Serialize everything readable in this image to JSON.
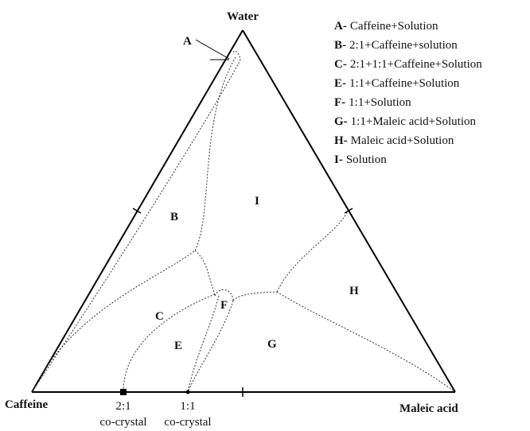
{
  "vertices": {
    "top": "Water",
    "left": "Caffeine",
    "right": "Maleic acid"
  },
  "regions": [
    "A",
    "B",
    "C",
    "E",
    "F",
    "G",
    "H",
    "I"
  ],
  "cocrystals": [
    {
      "ratio": "2:1",
      "label": "co-crystal"
    },
    {
      "ratio": "1:1",
      "label": "co-crystal"
    }
  ],
  "legend": [
    {
      "key": "A-",
      "text": "Caffeine+Solution"
    },
    {
      "key": "B-",
      "text": "2:1+Caffeine+solution"
    },
    {
      "key": "C-",
      "text": "2:1+1:1+Caffeine+Solution"
    },
    {
      "key": "E-",
      "text": "1:1+Caffeine+Solution"
    },
    {
      "key": "F-",
      "text": "1:1+Solution"
    },
    {
      "key": "G-",
      "text": "1:1+Maleic acid+Solution"
    },
    {
      "key": "H-",
      "text": "Maleic acid+Solution"
    },
    {
      "key": "I-",
      "text": "Solution"
    }
  ]
}
